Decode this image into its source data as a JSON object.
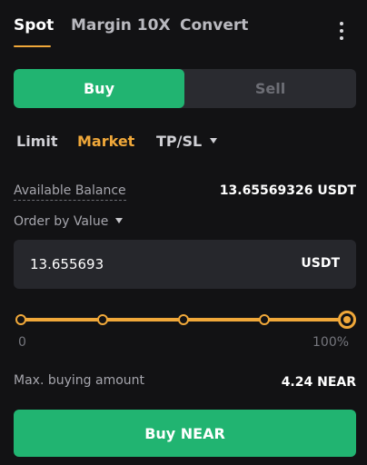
{
  "tabs": [
    {
      "label": "Spot",
      "active": true
    },
    {
      "label": "Margin 10X",
      "active": false
    },
    {
      "label": "Convert",
      "active": false
    }
  ],
  "more_icon": "more-vertical-icon",
  "side_toggle": {
    "buy_label": "Buy",
    "sell_label": "Sell",
    "selected": "Buy"
  },
  "order_types": {
    "limit": "Limit",
    "market": "Market",
    "tpsl": "TP/SL",
    "selected": "Market"
  },
  "balance": {
    "label": "Available Balance",
    "value": "13.65569326 USDT"
  },
  "order_by": {
    "label": "Order by Value"
  },
  "amount_input": {
    "value": "13.655693",
    "unit": "USDT"
  },
  "slider": {
    "min_label": "0",
    "max_label": "100%",
    "value_percent": 100,
    "stops": [
      0,
      25,
      50,
      75,
      100
    ]
  },
  "max_buy": {
    "label": "Max. buying amount",
    "value": "4.24 NEAR"
  },
  "submit": {
    "label": "Buy NEAR"
  },
  "colors": {
    "accent": "#f0a83a",
    "buy": "#21b471",
    "background": "#121214",
    "panel": "#26272c"
  }
}
